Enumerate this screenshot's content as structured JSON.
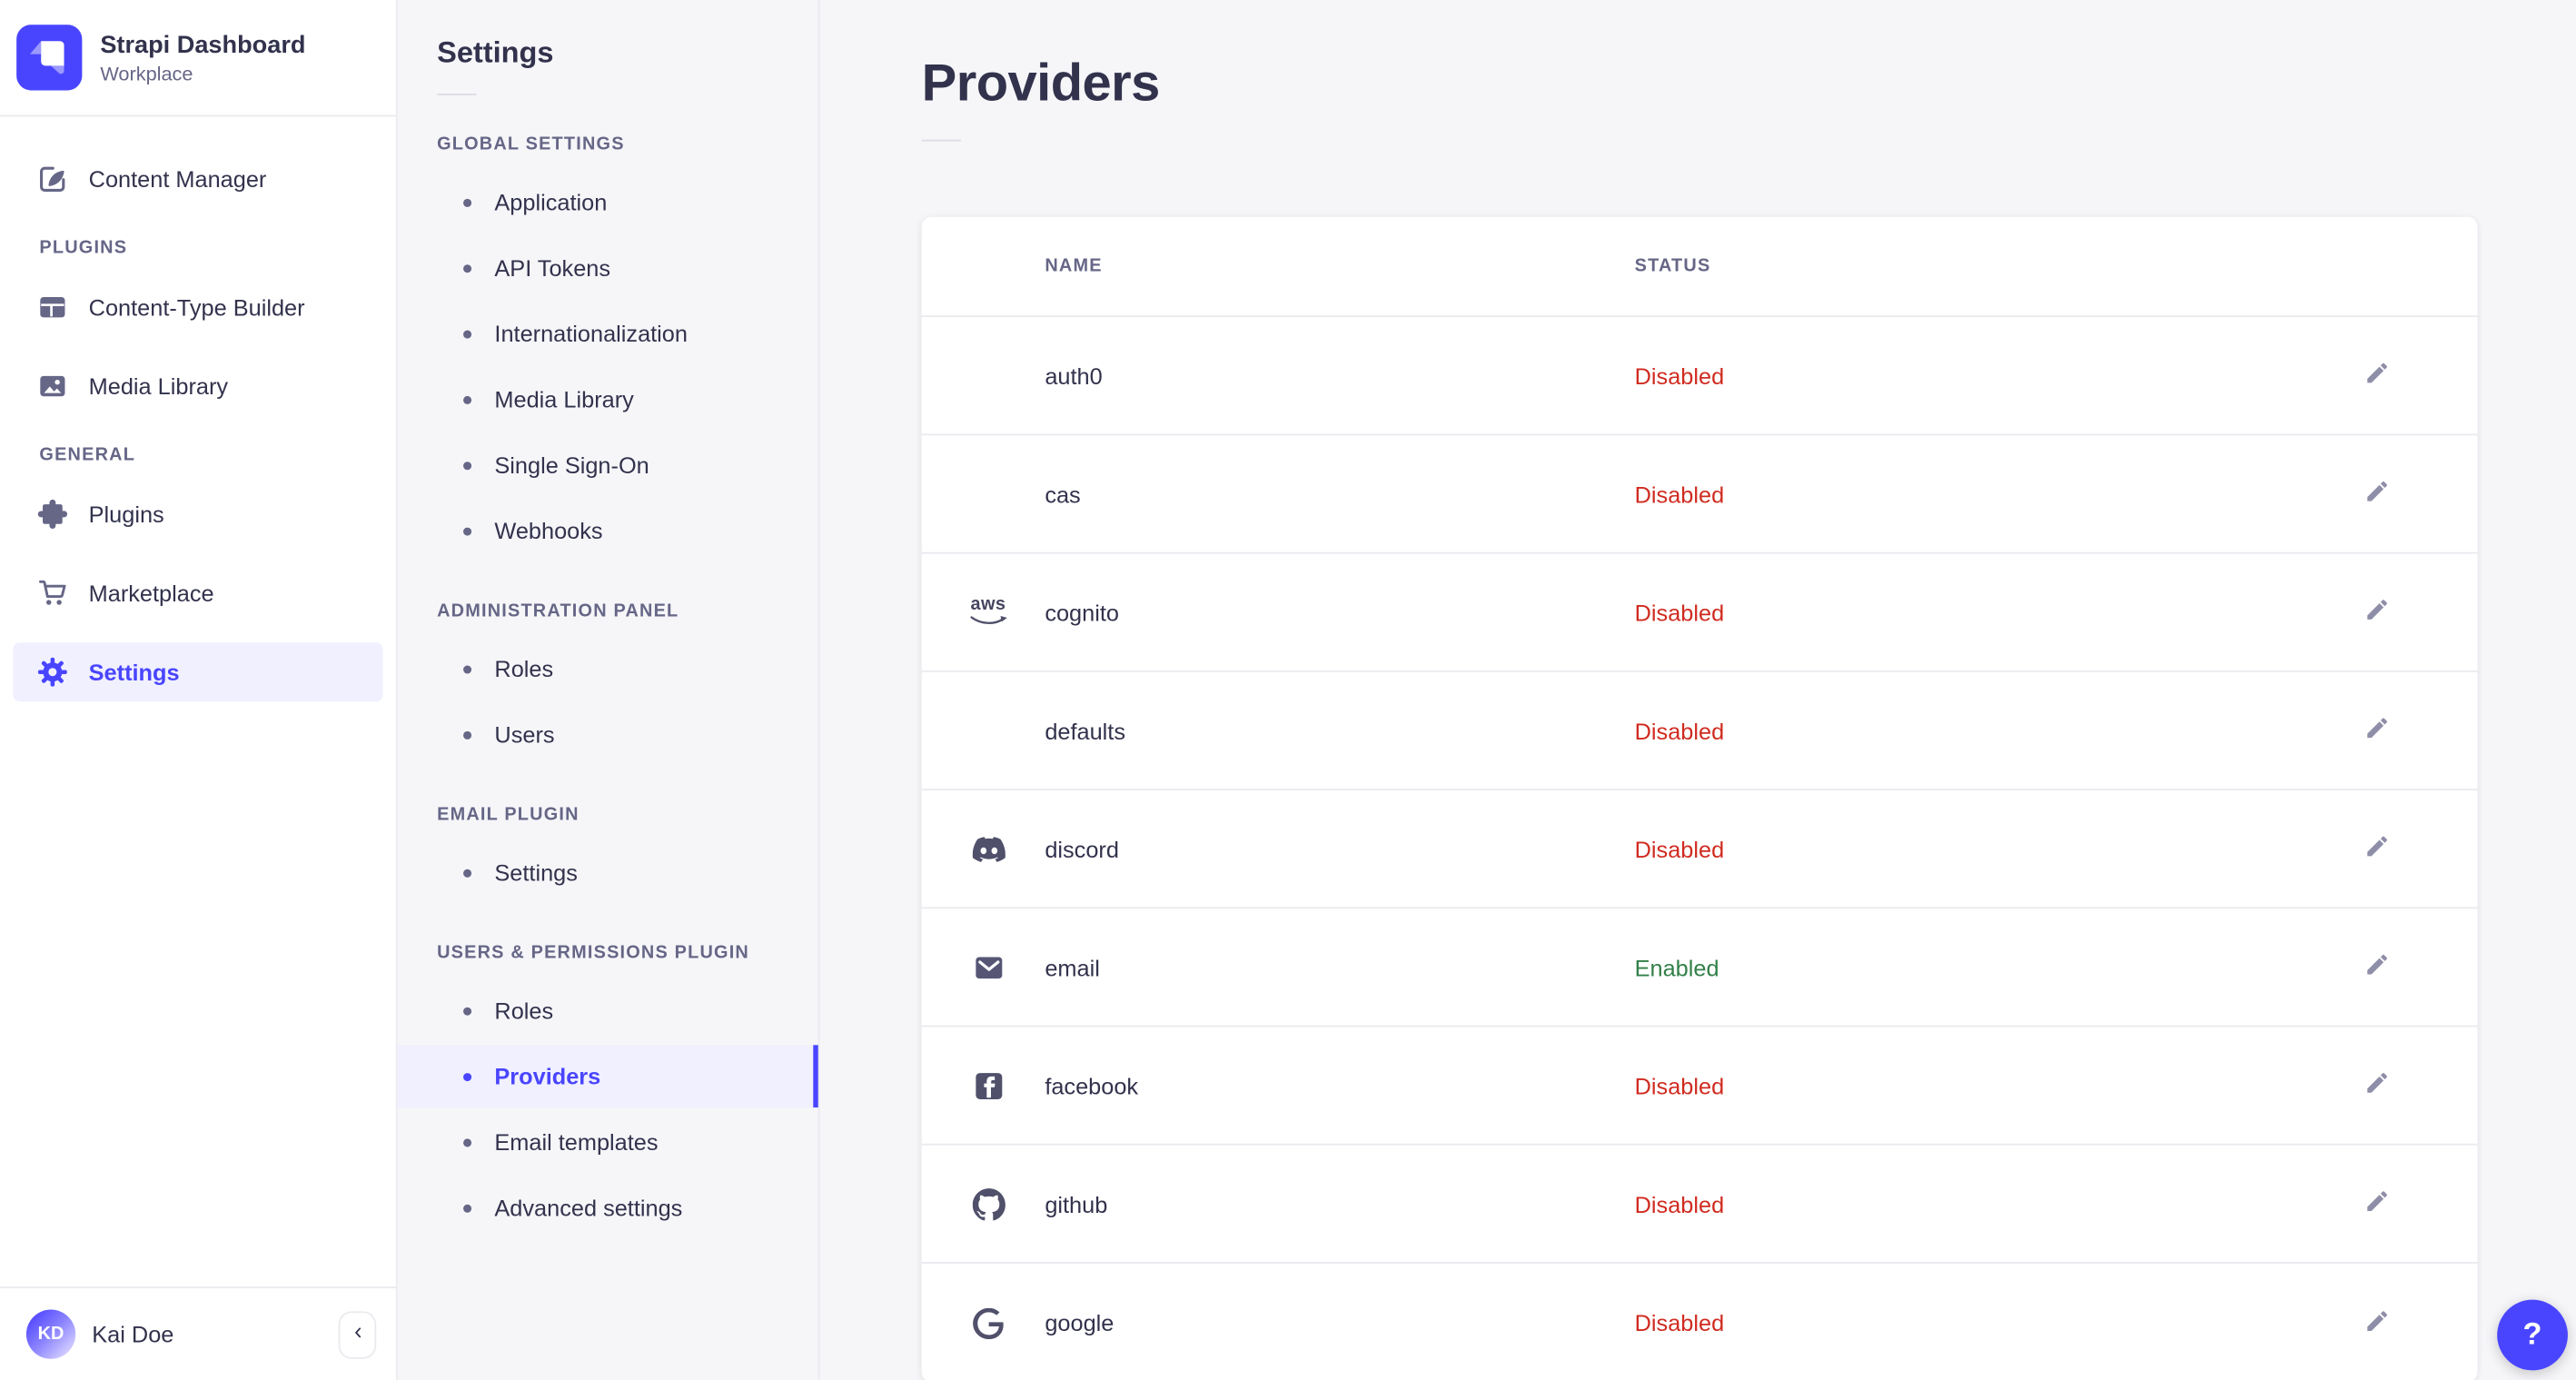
{
  "brand": {
    "name": "Strapi Dashboard",
    "workspace": "Workplace"
  },
  "sidebar": {
    "items": [
      {
        "label": "Content Manager"
      }
    ],
    "sections": [
      {
        "label": "PLUGINS",
        "items": [
          {
            "label": "Content-Type Builder"
          },
          {
            "label": "Media Library"
          }
        ]
      },
      {
        "label": "GENERAL",
        "items": [
          {
            "label": "Plugins"
          },
          {
            "label": "Marketplace"
          },
          {
            "label": "Settings",
            "selected": true
          }
        ]
      }
    ],
    "user": {
      "name": "Kai Doe",
      "initials": "KD"
    }
  },
  "subnav": {
    "title": "Settings",
    "sections": [
      {
        "label": "GLOBAL SETTINGS",
        "items": [
          {
            "label": "Application"
          },
          {
            "label": "API Tokens"
          },
          {
            "label": "Internationalization"
          },
          {
            "label": "Media Library"
          },
          {
            "label": "Single Sign-On"
          },
          {
            "label": "Webhooks"
          }
        ]
      },
      {
        "label": "ADMINISTRATION PANEL",
        "items": [
          {
            "label": "Roles"
          },
          {
            "label": "Users"
          }
        ]
      },
      {
        "label": "EMAIL PLUGIN",
        "items": [
          {
            "label": "Settings"
          }
        ]
      },
      {
        "label": "USERS & PERMISSIONS PLUGIN",
        "items": [
          {
            "label": "Roles"
          },
          {
            "label": "Providers",
            "selected": true
          },
          {
            "label": "Email templates"
          },
          {
            "label": "Advanced settings"
          }
        ]
      }
    ]
  },
  "main": {
    "title": "Providers",
    "table": {
      "columns": [
        "NAME",
        "STATUS"
      ],
      "rows": [
        {
          "name": "auth0",
          "icon": "",
          "status": "Disabled"
        },
        {
          "name": "cas",
          "icon": "",
          "status": "Disabled"
        },
        {
          "name": "cognito",
          "icon": "aws-icon",
          "status": "Disabled"
        },
        {
          "name": "defaults",
          "icon": "",
          "status": "Disabled"
        },
        {
          "name": "discord",
          "icon": "discord-icon",
          "status": "Disabled"
        },
        {
          "name": "email",
          "icon": "email-icon",
          "status": "Enabled"
        },
        {
          "name": "facebook",
          "icon": "facebook-icon",
          "status": "Disabled"
        },
        {
          "name": "github",
          "icon": "github-icon",
          "status": "Disabled"
        },
        {
          "name": "google",
          "icon": "google-icon",
          "status": "Disabled"
        }
      ]
    }
  },
  "help": {
    "label": "?"
  },
  "colors": {
    "primary": "#4945ff",
    "primary_light": "#f0f0ff",
    "danger": "#d02b20",
    "success": "#328048"
  }
}
